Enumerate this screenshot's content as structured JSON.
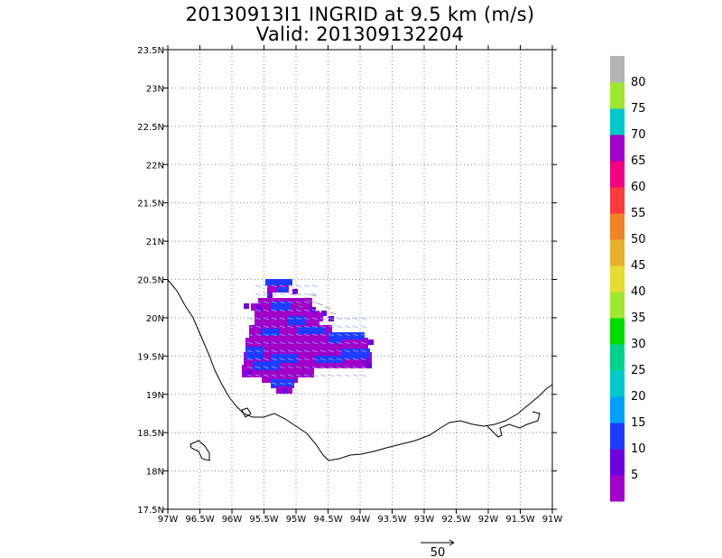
{
  "title": {
    "line1": "20130913I1 INGRID at 9.5 km (m/s)",
    "line2": "Valid: 201309132204"
  },
  "map": {
    "lat_labels": [
      "23.5N",
      "23N",
      "22.5N",
      "22N",
      "21.5N",
      "21N",
      "20.5N",
      "20N",
      "19.5N",
      "19N",
      "18.5N",
      "18N",
      "17.5N"
    ],
    "lon_labels": [
      "97W",
      "96.5W",
      "96W",
      "95.5W",
      "95W",
      "94.5W",
      "94W",
      "93.5W",
      "93W",
      "92.5W",
      "92W",
      "91.5W",
      "91W"
    ],
    "lat_range": [
      17.5,
      23.5
    ],
    "lon_range": [
      -97,
      -91
    ],
    "grid": "dotted",
    "reference_vector_label": "50"
  },
  "colorbar": {
    "levels": [
      "5",
      "10",
      "15",
      "20",
      "25",
      "30",
      "35",
      "40",
      "45",
      "50",
      "55",
      "60",
      "65",
      "70",
      "75",
      "80"
    ],
    "colors": [
      "#a000c8",
      "#6e00dc",
      "#1e3cff",
      "#00a0ff",
      "#00c8c8",
      "#00d28c",
      "#00dc00",
      "#a0e632",
      "#e6dc32",
      "#e6af2d",
      "#f08228",
      "#fa3c3c",
      "#f00082",
      "#a000c8",
      "#00c8c8",
      "#a0e632",
      "#b4b4b4"
    ]
  }
}
